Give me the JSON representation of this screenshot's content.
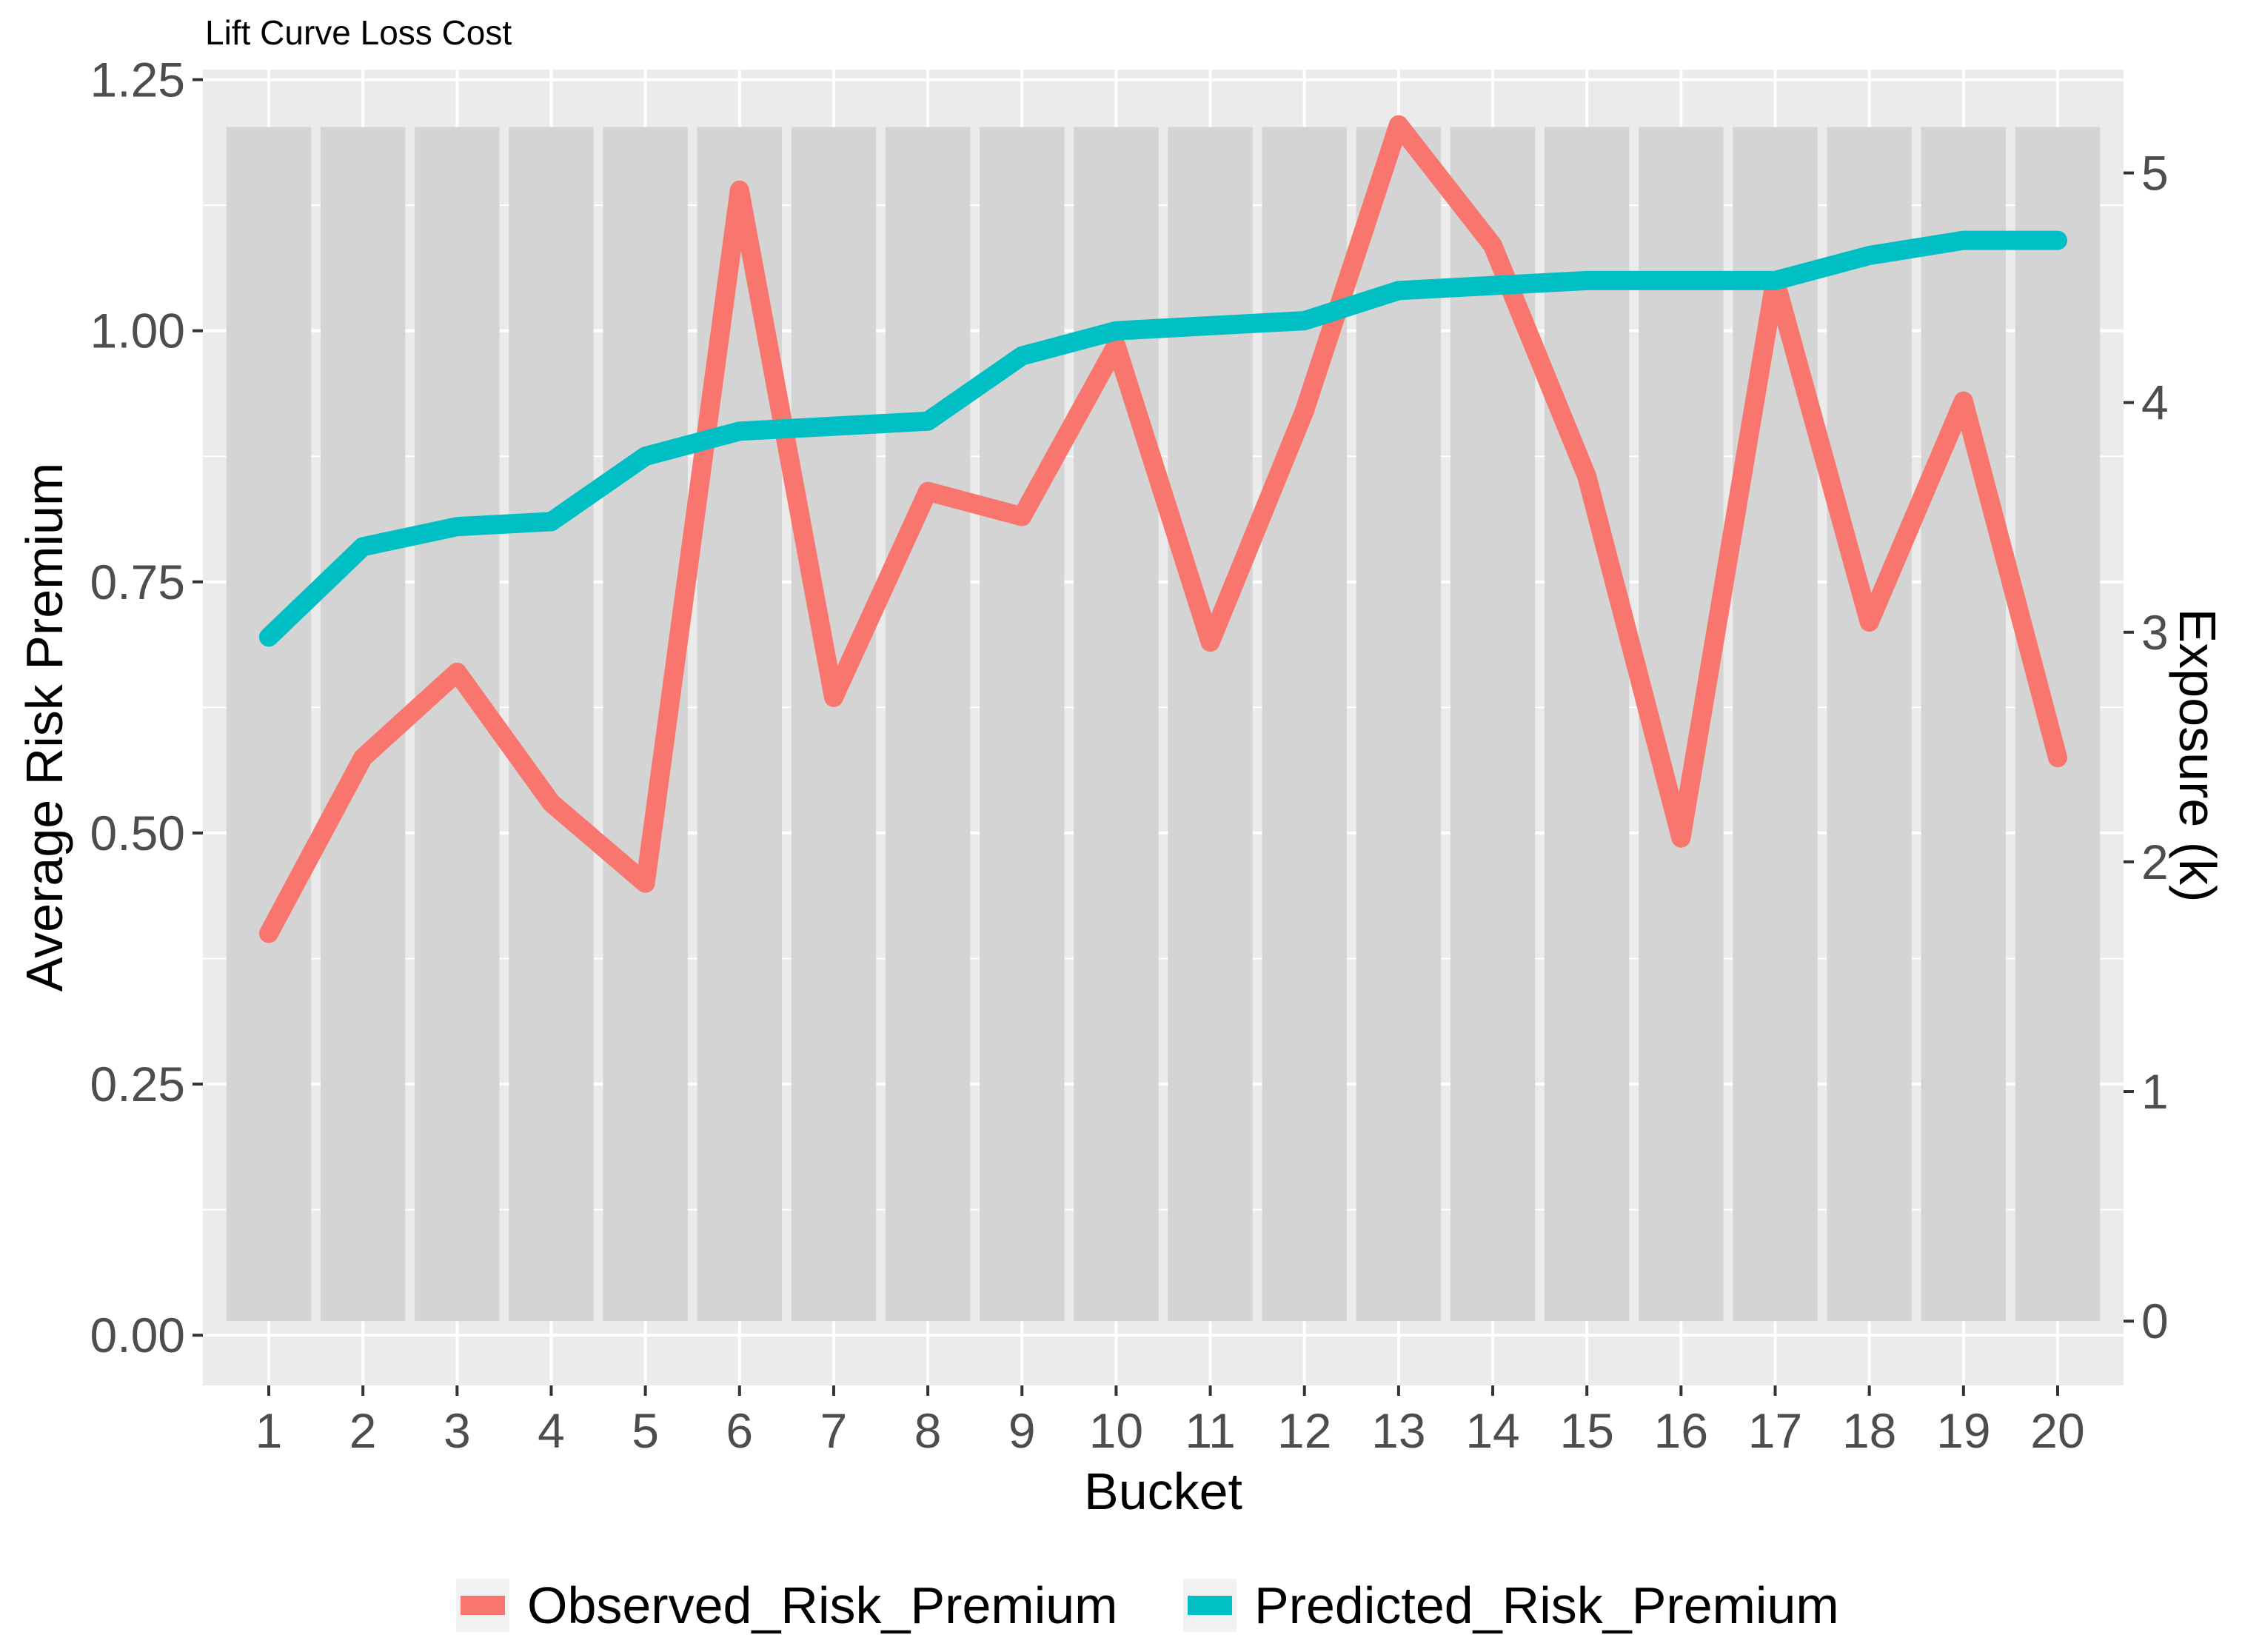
{
  "chart_data": {
    "type": "line",
    "title": "Lift Curve Loss Cost",
    "xlabel": "Bucket",
    "ylabel": "Average Risk Premium",
    "y2label": "Exposure (k)",
    "categories": [
      "1",
      "2",
      "3",
      "4",
      "5",
      "6",
      "7",
      "8",
      "9",
      "10",
      "11",
      "12",
      "13",
      "14",
      "15",
      "16",
      "17",
      "18",
      "19",
      "20"
    ],
    "ylim": [
      -0.05,
      1.26
    ],
    "yticks": [
      0,
      0.25,
      0.5,
      0.75,
      1.0,
      1.25
    ],
    "ytick_labels": [
      "0.00",
      "0.25",
      "0.50",
      "0.75",
      "1.00",
      "1.25"
    ],
    "y2lim": [
      -0.28,
      5.45
    ],
    "y2ticks": [
      0,
      1,
      2,
      3,
      4,
      5
    ],
    "y2tick_labels": [
      "0",
      "1",
      "2",
      "3",
      "4",
      "5"
    ],
    "bars": {
      "name": "Exposure (k)",
      "axis": "secondary",
      "color": "#d4d4d4",
      "values": [
        5.2,
        5.2,
        5.2,
        5.2,
        5.2,
        5.2,
        5.2,
        5.2,
        5.2,
        5.2,
        5.2,
        5.2,
        5.2,
        5.2,
        5.2,
        5.2,
        5.2,
        5.2,
        5.2,
        5.2
      ]
    },
    "series": [
      {
        "name": "Observed_Risk_Premium",
        "color": "#f8766d",
        "values": [
          0.4,
          0.575,
          0.66,
          0.53,
          0.45,
          1.14,
          0.635,
          0.84,
          0.815,
          0.985,
          0.69,
          0.92,
          1.205,
          1.085,
          0.855,
          0.495,
          1.05,
          0.71,
          0.93,
          0.575
        ]
      },
      {
        "name": "Predicted_Risk_Premium",
        "color": "#00bfc4",
        "values": [
          0.695,
          0.785,
          0.805,
          0.81,
          0.875,
          0.9,
          0.905,
          0.91,
          0.975,
          1.0,
          1.005,
          1.01,
          1.04,
          1.045,
          1.05,
          1.05,
          1.05,
          1.075,
          1.09,
          1.09
        ]
      }
    ],
    "legend_position": "bottom"
  }
}
